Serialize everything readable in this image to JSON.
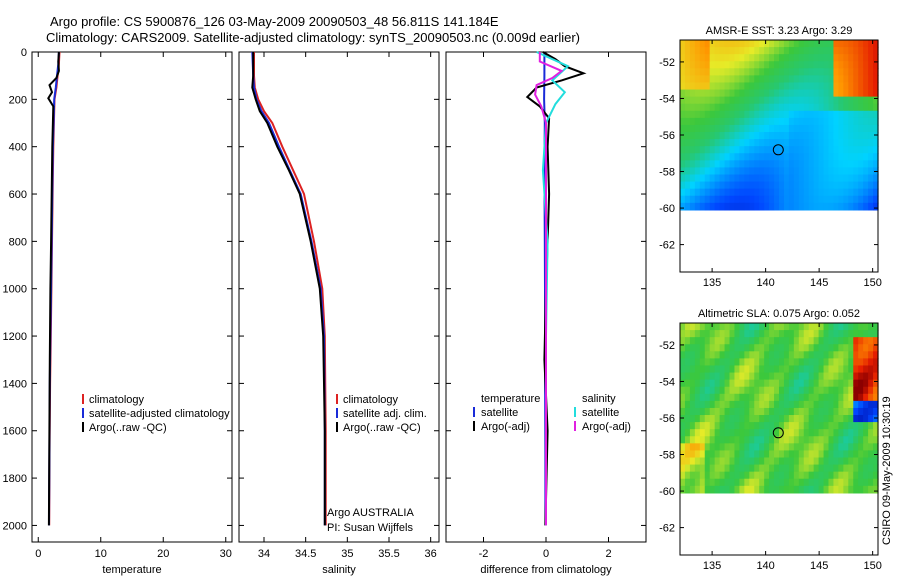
{
  "header": {
    "line1": "Argo profile: CS 5900876_126 03-May-2009 20090503_48 56.811S 141.184E",
    "line2": "Climatology: CARS2009. Satellite-adjusted climatology: synTS_20090503.nc (0.009d earlier)"
  },
  "side_label": "CSIRO 09-May-2009 10:30:19",
  "colors": {
    "climatology": "#dd2222",
    "satellite": "#1a2bd8",
    "argo": "#000000",
    "satellite_diff_s": "#22dddd",
    "argo_diff_s": "#e020e0"
  },
  "chart_data": [
    {
      "type": "line",
      "id": "temperature",
      "xlabel": "temperature",
      "ylabel": "",
      "xlim": [
        -1,
        31
      ],
      "ylim": [
        2070,
        0
      ],
      "x_ticks": [
        "0",
        "10",
        "20",
        "30"
      ],
      "y_ticks": [
        "0",
        "200",
        "400",
        "600",
        "800",
        "1000",
        "1200",
        "1400",
        "1600",
        "1800",
        "2000"
      ],
      "legend": [
        "climatology",
        "satellite-adjusted climatology",
        "Argo(..raw -QC)"
      ],
      "legend_position": "lower-right",
      "series": [
        {
          "name": "climatology",
          "x": [
            3.4,
            3.3,
            3.1,
            2.9,
            2.6,
            2.5,
            2.4,
            2.3,
            2.2,
            2.1,
            2.0,
            1.9,
            1.8,
            1.75
          ],
          "y": [
            0,
            50,
            100,
            150,
            200,
            300,
            400,
            600,
            800,
            1000,
            1200,
            1400,
            1700,
            2000
          ]
        },
        {
          "name": "satellite-adjusted climatology",
          "x": [
            3.3,
            3.2,
            3.0,
            2.8,
            2.55,
            2.45,
            2.35,
            2.25,
            2.15,
            2.05,
            1.95,
            1.85,
            1.78,
            1.72
          ],
          "y": [
            0,
            50,
            100,
            150,
            200,
            300,
            400,
            600,
            800,
            1000,
            1200,
            1400,
            1700,
            2000
          ]
        },
        {
          "name": "Argo(..raw -QC)",
          "x": [
            3.3,
            3.2,
            3.3,
            2.9,
            1.8,
            2.2,
            1.6,
            2.4,
            2.35,
            2.25,
            2.15,
            2.05,
            1.95,
            1.85,
            1.78,
            1.7
          ],
          "y": [
            0,
            40,
            80,
            110,
            140,
            170,
            195,
            230,
            300,
            400,
            600,
            800,
            1000,
            1300,
            1600,
            2000
          ]
        }
      ]
    },
    {
      "type": "line",
      "id": "salinity",
      "xlabel": "salinity",
      "xlim": [
        33.7,
        36.1
      ],
      "ylim": [
        2070,
        0
      ],
      "x_ticks": [
        "34",
        "34.5",
        "35",
        "35.5",
        "36"
      ],
      "legend": [
        "climatology",
        "satellite adj. clim.",
        "Argo(..raw -QC)"
      ],
      "legend_position": "lower-right",
      "annotations": [
        "Argo AUSTRALIA",
        "PI: Susan Wijffels"
      ],
      "series": [
        {
          "name": "climatology",
          "x": [
            33.88,
            33.88,
            33.89,
            33.93,
            34.0,
            34.1,
            34.22,
            34.35,
            34.48,
            34.6,
            34.7,
            34.73,
            34.74,
            34.74
          ],
          "y": [
            0,
            100,
            150,
            200,
            250,
            300,
            400,
            500,
            600,
            800,
            1000,
            1200,
            1600,
            2000
          ]
        },
        {
          "name": "satellite adj. clim.",
          "x": [
            33.86,
            33.87,
            33.88,
            33.91,
            33.97,
            34.06,
            34.18,
            34.31,
            34.44,
            34.57,
            34.68,
            34.72,
            34.73,
            34.73
          ],
          "y": [
            0,
            100,
            150,
            200,
            250,
            300,
            400,
            500,
            600,
            800,
            1000,
            1200,
            1600,
            2000
          ]
        },
        {
          "name": "Argo(..raw -QC)",
          "x": [
            33.87,
            33.87,
            33.86,
            33.9,
            33.95,
            34.04,
            34.16,
            34.3,
            34.43,
            34.56,
            34.67,
            34.71,
            34.73,
            34.73
          ],
          "y": [
            0,
            100,
            150,
            200,
            250,
            300,
            400,
            500,
            600,
            800,
            1000,
            1200,
            1600,
            2000
          ]
        }
      ]
    },
    {
      "type": "line",
      "id": "difference",
      "xlabel": "difference from climatology",
      "xlim": [
        -3.2,
        3.2
      ],
      "ylim": [
        2070,
        0
      ],
      "x_ticks": [
        "-2",
        "0",
        "2"
      ],
      "legend_temperature": {
        "heading": "temperature",
        "entries": [
          "satellite",
          "Argo(-adj)"
        ]
      },
      "legend_salinity": {
        "heading": "salinity",
        "entries": [
          "satellite",
          "Argo(-adj)"
        ]
      },
      "series": [
        {
          "name": "temperature satellite",
          "x": [
            -0.05,
            -0.05,
            -0.06,
            -0.04,
            -0.05,
            -0.04,
            -0.03,
            -0.03,
            -0.02,
            -0.02
          ],
          "y": [
            0,
            100,
            200,
            300,
            500,
            800,
            1100,
            1400,
            1700,
            2000
          ]
        },
        {
          "name": "temperature Argo(-adj)",
          "x": [
            -0.1,
            0.3,
            0.6,
            1.2,
            0.5,
            -0.3,
            -0.6,
            -0.2,
            0.1,
            0.05,
            0.1,
            0.05,
            0.0,
            -0.05,
            0.05,
            -0.02
          ],
          "y": [
            0,
            30,
            60,
            90,
            120,
            150,
            190,
            230,
            280,
            400,
            600,
            800,
            1000,
            1300,
            1600,
            2000
          ]
        },
        {
          "name": "salinity satellite",
          "x": [
            -0.3,
            0.7,
            0.2,
            0.6,
            0.3,
            0.0,
            -0.1,
            0.05,
            0.0,
            0.0
          ],
          "y": [
            0,
            60,
            120,
            170,
            220,
            300,
            500,
            800,
            1200,
            2000
          ]
        },
        {
          "name": "salinity Argo(-adj)",
          "x": [
            -0.2,
            -0.2,
            0.5,
            0.2,
            -0.3,
            -0.35,
            -0.15,
            0.0,
            0.0,
            0.0,
            0.0
          ],
          "y": [
            0,
            40,
            80,
            110,
            140,
            180,
            230,
            300,
            600,
            1000,
            2000
          ]
        }
      ]
    },
    {
      "type": "heatmap",
      "id": "sst",
      "title": "AMSR-E SST: 3.23 Argo: 3.29",
      "xlim": [
        132,
        150.5
      ],
      "ylim": [
        -63.5,
        -50.8
      ],
      "x_ticks": [
        "135",
        "140",
        "145",
        "150"
      ],
      "y_ticks": [
        "-52",
        "-54",
        "-56",
        "-58",
        "-60",
        "-62"
      ],
      "no_data_below_lat": -60.1,
      "argo_position": [
        141.184,
        -56.811
      ]
    },
    {
      "type": "heatmap",
      "id": "sla",
      "title": "Altimetric SLA: 0.075 Argo: 0.052",
      "xlim": [
        132,
        150.5
      ],
      "ylim": [
        -63.5,
        -50.8
      ],
      "x_ticks": [
        "135",
        "140",
        "145",
        "150"
      ],
      "y_ticks": [
        "-52",
        "-54",
        "-56",
        "-58",
        "-60",
        "-62"
      ],
      "no_data_below_lat": -60.1,
      "argo_position": [
        141.184,
        -56.811
      ]
    }
  ]
}
